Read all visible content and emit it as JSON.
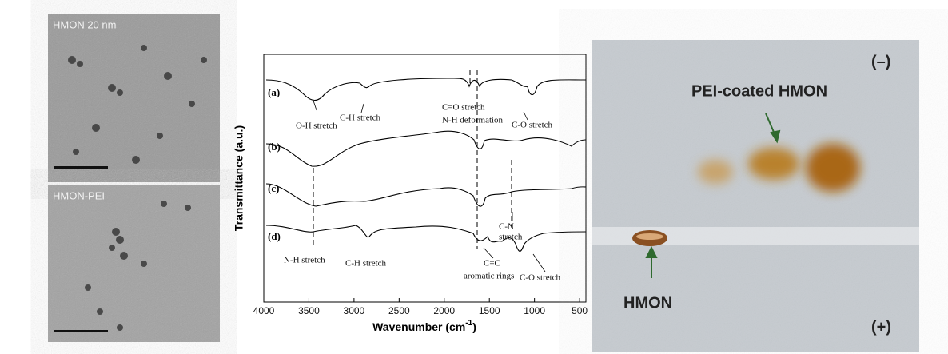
{
  "figure": {
    "tem": {
      "top_label": "HMON 20 nm",
      "bottom_label": "HMON-PEI"
    },
    "ftir": {
      "x_label": "Wavenumber (cm",
      "x_label_sup": "-1",
      "x_label_end": ")",
      "y_label": "Transmittance (a.u.)",
      "xlim": [
        4000,
        430
      ],
      "xticks": [
        4000,
        3500,
        3000,
        2500,
        2000,
        1500,
        1000,
        500
      ],
      "series_labels": [
        "(a)",
        "(b)",
        "(c)",
        "(d)"
      ],
      "annotations": [
        "O-H stretch",
        "C-H stretch",
        "C=O stretch",
        "N-H deformation",
        "C-O stretch",
        "N-H stretch",
        "C-H stretch",
        "C=C",
        "aromatic rings",
        "C-N",
        "stretch",
        "C-O stretch"
      ]
    },
    "gel": {
      "minus": "(–)",
      "plus": "(+)",
      "coated_label": "PEI-coated HMON",
      "hmon_label": "HMON"
    }
  }
}
